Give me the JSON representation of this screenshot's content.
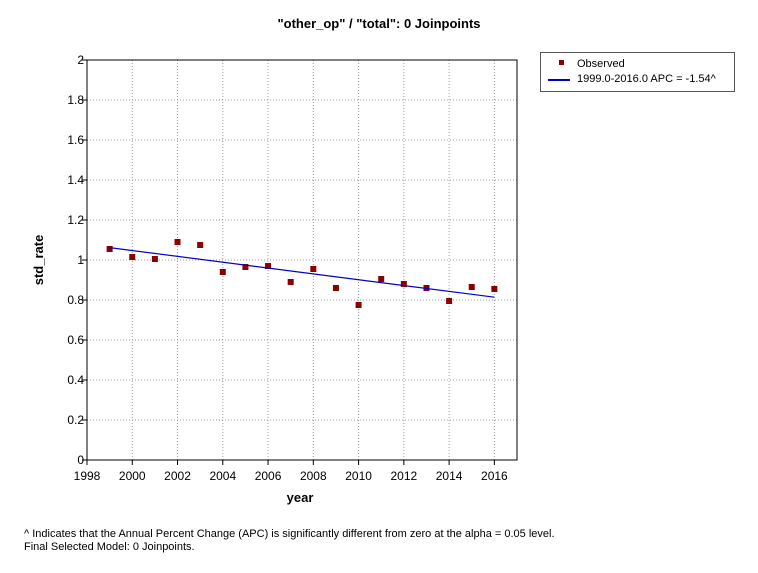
{
  "chart_data": {
    "type": "scatter",
    "title": "\"other_op\" / \"total\": 0 Joinpoints",
    "xlabel": "year",
    "ylabel": "std_rate",
    "xlim": [
      1998,
      2017
    ],
    "ylim": [
      0,
      2
    ],
    "xticks": [
      "1998",
      "2000",
      "2002",
      "2004",
      "2006",
      "2008",
      "2010",
      "2012",
      "2014",
      "2016"
    ],
    "yticks": [
      "0",
      "0.2",
      "0.4",
      "0.6",
      "0.8",
      "1",
      "1.2",
      "1.4",
      "1.6",
      "1.8",
      "2"
    ],
    "grid": true,
    "legend_position": "outside-top-right",
    "series": [
      {
        "name": "Observed",
        "kind": "points",
        "color": "#8b0000",
        "x": [
          1999,
          2000,
          2001,
          2002,
          2003,
          2004,
          2005,
          2006,
          2007,
          2008,
          2009,
          2010,
          2011,
          2012,
          2013,
          2014,
          2015,
          2016
        ],
        "y": [
          1.055,
          1.015,
          1.005,
          1.09,
          1.075,
          0.94,
          0.965,
          0.97,
          0.89,
          0.955,
          0.86,
          0.775,
          0.905,
          0.88,
          0.86,
          0.795,
          0.865,
          0.855
        ]
      },
      {
        "name": "1999.0-2016.0 APC  = -1.54^",
        "kind": "line",
        "color": "#0000cc",
        "x": [
          1999,
          2016
        ],
        "y": [
          1.062,
          0.814
        ]
      }
    ]
  },
  "footnote": {
    "line1": "^ Indicates that the Annual Percent Change (APC) is significantly different from zero at the alpha = 0.05 level.",
    "line2": "Final Selected Model: 0 Joinpoints."
  }
}
